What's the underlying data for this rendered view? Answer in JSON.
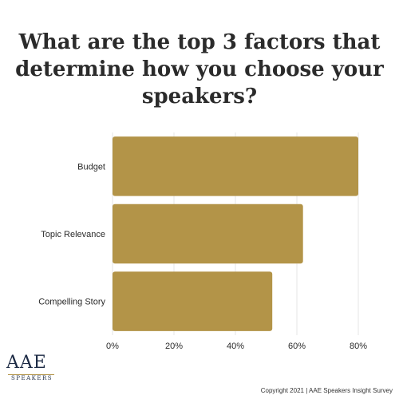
{
  "title": "What are the top 3 factors that determine how you choose your speakers?",
  "logo": {
    "main": "AAE",
    "sub": "SPEAKERS"
  },
  "footer": "Copyright 2021 | AAE Speakers Insight Survey",
  "colors": {
    "bar": "#b39448",
    "grid": "#e6e6e6",
    "text": "#2b2b2b"
  },
  "chart_data": {
    "type": "bar",
    "orientation": "horizontal",
    "categories": [
      "Budget",
      "Topic Relevance",
      "Compelling Story"
    ],
    "values": [
      80,
      62,
      52
    ],
    "xlim": [
      0,
      80
    ],
    "xticks": [
      "0%",
      "20%",
      "40%",
      "60%",
      "80%"
    ],
    "grid": true,
    "legend": "none"
  }
}
